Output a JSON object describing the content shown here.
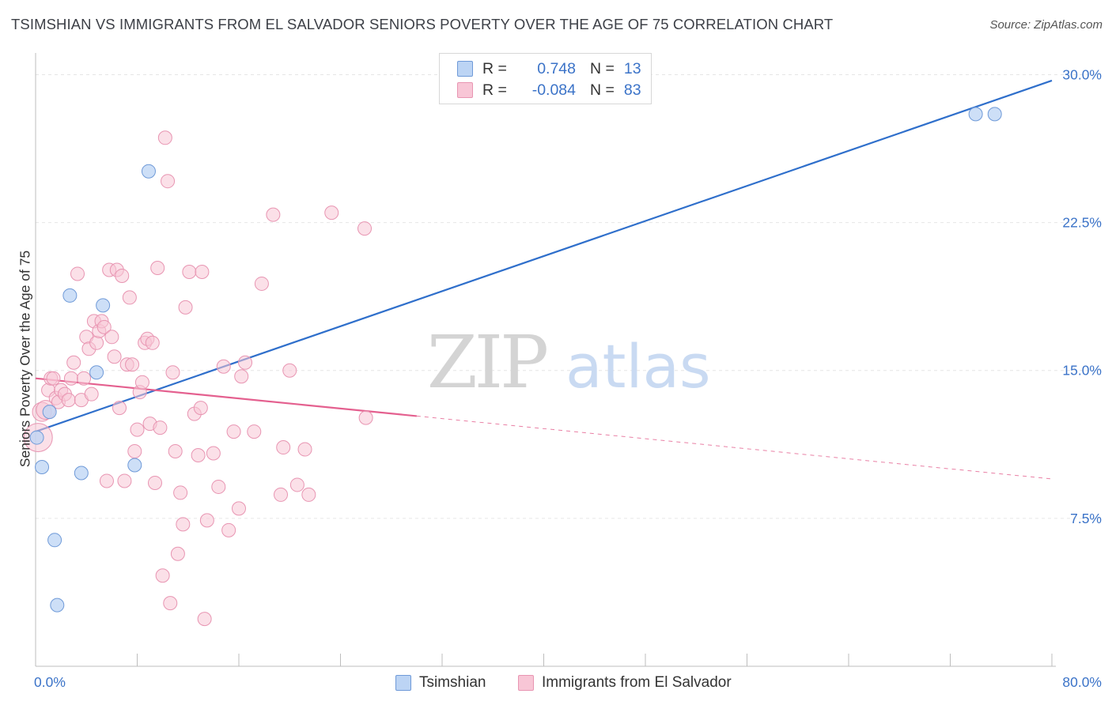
{
  "title": "TSIMSHIAN VS IMMIGRANTS FROM EL SALVADOR SENIORS POVERTY OVER THE AGE OF 75 CORRELATION CHART",
  "source": "Source: ZipAtlas.com",
  "watermark": {
    "zip": "ZIP",
    "atlas": "atlas"
  },
  "legend": {
    "rows": [
      {
        "r_label": "R =",
        "r_value": "0.748",
        "n_label": "N =",
        "n_value": "13"
      },
      {
        "r_label": "R =",
        "r_value": "-0.084",
        "n_label": "N =",
        "n_value": "83"
      }
    ]
  },
  "bottom_legend": {
    "series1": "Tsimshian",
    "series2": "Immigrants from El Salvador"
  },
  "colors": {
    "tsimshian_fill": "#bcd4f4",
    "tsimshian_stroke": "#6f9ad8",
    "tsimshian_line": "#2f6fcb",
    "salvador_fill": "#f8c6d6",
    "salvador_stroke": "#e895b2",
    "salvador_line": "#e4608f",
    "axis_label": "#3b73c8",
    "grid": "#e6e6e6"
  },
  "chart_data": {
    "type": "scatter",
    "title": "TSIMSHIAN VS IMMIGRANTS FROM EL SALVADOR SENIORS POVERTY OVER THE AGE OF 75 CORRELATION CHART",
    "xlabel": "",
    "ylabel": "Seniors Poverty Over the Age of 75",
    "xlim": [
      0,
      80
    ],
    "ylim": [
      0,
      30.9
    ],
    "x_tick_labels": [
      "0.0%",
      "80.0%"
    ],
    "y_ticks": [
      7.5,
      15.0,
      22.5,
      30.0
    ],
    "y_tick_labels": [
      "7.5%",
      "15.0%",
      "22.5%",
      "30.0%"
    ],
    "grid": true,
    "legend_position": "top-center",
    "series": [
      {
        "name": "Tsimshian",
        "points": [
          [
            0.1,
            11.6
          ],
          [
            0.5,
            10.1
          ],
          [
            1.1,
            12.9
          ],
          [
            1.5,
            6.4
          ],
          [
            1.7,
            3.1
          ],
          [
            2.7,
            18.8
          ],
          [
            3.6,
            9.8
          ],
          [
            4.8,
            14.9
          ],
          [
            5.3,
            18.3
          ],
          [
            7.8,
            10.2
          ],
          [
            8.9,
            25.1
          ],
          [
            74.0,
            28.0
          ],
          [
            75.5,
            28.0
          ]
        ],
        "trend": {
          "x0": 0,
          "y0": 11.9,
          "x1": 80,
          "y1": 29.7,
          "dashed_from": null
        }
      },
      {
        "name": "Immigrants from El Salvador",
        "points": [
          [
            0.2,
            11.6
          ],
          [
            0.5,
            12.9
          ],
          [
            0.8,
            13.0
          ],
          [
            1.0,
            14.0
          ],
          [
            1.2,
            14.6
          ],
          [
            1.4,
            14.6
          ],
          [
            1.6,
            13.6
          ],
          [
            1.8,
            13.4
          ],
          [
            2.0,
            14.0
          ],
          [
            2.3,
            13.8
          ],
          [
            2.6,
            13.5
          ],
          [
            2.8,
            14.6
          ],
          [
            3.0,
            15.4
          ],
          [
            3.3,
            19.9
          ],
          [
            3.6,
            13.5
          ],
          [
            3.8,
            14.6
          ],
          [
            4.0,
            16.7
          ],
          [
            4.2,
            16.1
          ],
          [
            4.4,
            13.8
          ],
          [
            4.6,
            17.5
          ],
          [
            4.8,
            16.4
          ],
          [
            5.0,
            17.0
          ],
          [
            5.2,
            17.5
          ],
          [
            5.4,
            17.2
          ],
          [
            5.6,
            9.4
          ],
          [
            5.8,
            20.1
          ],
          [
            6.0,
            16.7
          ],
          [
            6.2,
            15.7
          ],
          [
            6.4,
            20.1
          ],
          [
            6.6,
            13.1
          ],
          [
            6.8,
            19.8
          ],
          [
            7.0,
            9.4
          ],
          [
            7.2,
            15.3
          ],
          [
            7.4,
            18.7
          ],
          [
            7.6,
            15.3
          ],
          [
            7.8,
            10.9
          ],
          [
            8.0,
            12.0
          ],
          [
            8.2,
            13.9
          ],
          [
            8.4,
            14.4
          ],
          [
            8.6,
            16.4
          ],
          [
            8.8,
            16.6
          ],
          [
            9.0,
            12.3
          ],
          [
            9.2,
            16.4
          ],
          [
            9.4,
            9.3
          ],
          [
            9.6,
            20.2
          ],
          [
            9.8,
            12.1
          ],
          [
            10.0,
            4.6
          ],
          [
            10.2,
            26.8
          ],
          [
            10.4,
            24.6
          ],
          [
            10.6,
            3.2
          ],
          [
            10.8,
            14.9
          ],
          [
            11.0,
            10.9
          ],
          [
            11.2,
            5.7
          ],
          [
            11.4,
            8.8
          ],
          [
            11.6,
            7.2
          ],
          [
            11.8,
            18.2
          ],
          [
            12.1,
            20.0
          ],
          [
            12.5,
            12.8
          ],
          [
            12.8,
            10.7
          ],
          [
            13.1,
            20.0
          ],
          [
            13.3,
            2.4
          ],
          [
            13.5,
            7.4
          ],
          [
            14.0,
            10.8
          ],
          [
            14.4,
            9.1
          ],
          [
            14.8,
            15.2
          ],
          [
            15.2,
            6.9
          ],
          [
            15.6,
            11.9
          ],
          [
            16.0,
            8.0
          ],
          [
            16.2,
            14.7
          ],
          [
            16.5,
            15.4
          ],
          [
            17.2,
            11.9
          ],
          [
            17.8,
            19.4
          ],
          [
            18.7,
            22.9
          ],
          [
            19.3,
            8.7
          ],
          [
            19.5,
            11.1
          ],
          [
            20.0,
            15.0
          ],
          [
            20.6,
            9.2
          ],
          [
            21.2,
            11.0
          ],
          [
            21.5,
            8.7
          ],
          [
            23.3,
            23.0
          ],
          [
            25.9,
            22.2
          ],
          [
            26.0,
            12.6
          ],
          [
            13.0,
            13.1
          ]
        ],
        "trend": {
          "x0": 0,
          "y0": 14.6,
          "x1": 80,
          "y1": 9.5,
          "dashed_from": 30
        }
      }
    ]
  }
}
